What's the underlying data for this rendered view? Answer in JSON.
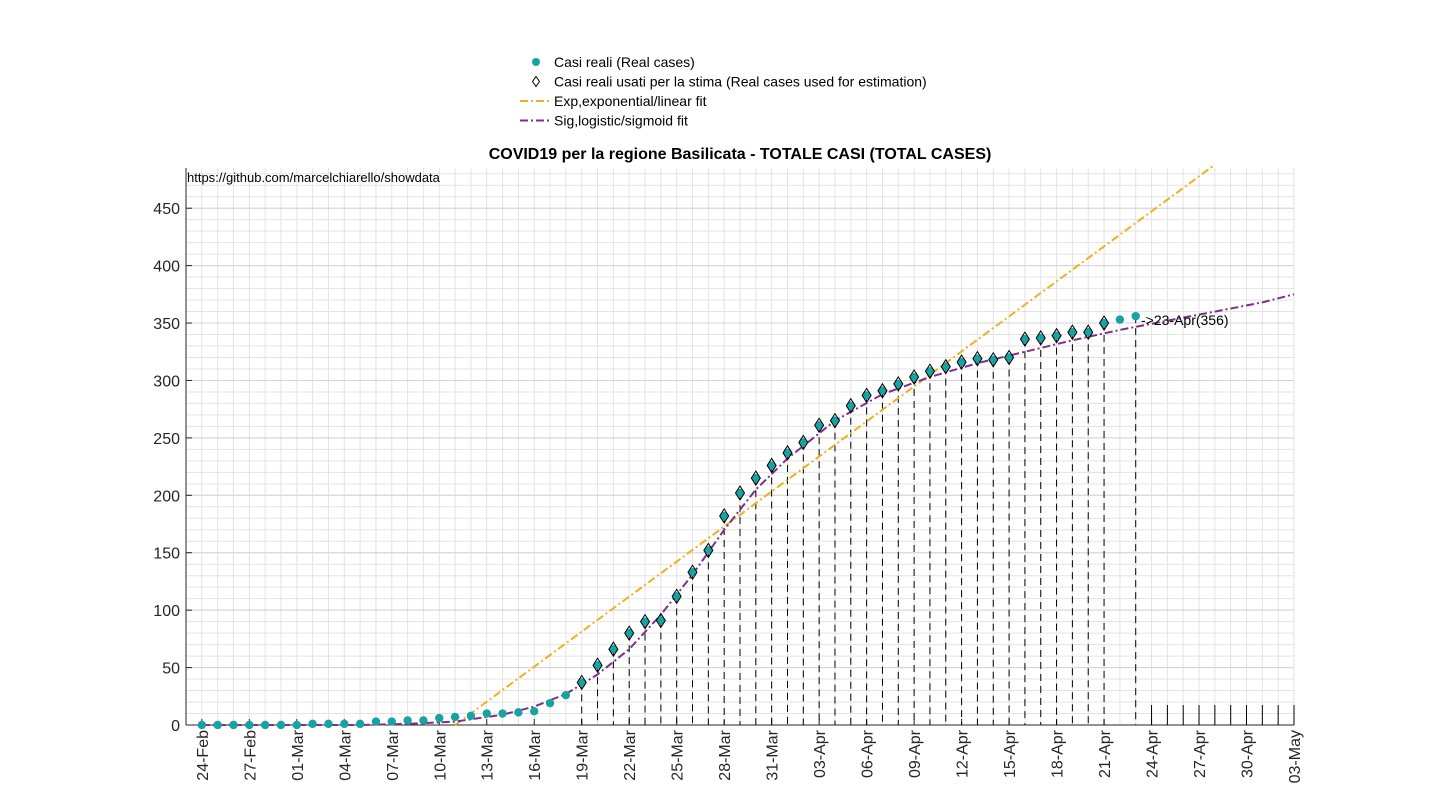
{
  "chart_data": {
    "type": "scatter",
    "title": "COVID19 per la regione Basilicata - TOTALE CASI (TOTAL CASES)",
    "source_text": "https://github.com/marcelchiarello/showdata",
    "xlabel": "",
    "ylabel": "",
    "ylim": [
      0,
      485
    ],
    "y_ticks": [
      0,
      50,
      100,
      150,
      200,
      250,
      300,
      350,
      400,
      450
    ],
    "x_ticks": [
      "24-Feb",
      "27-Feb",
      "01-Mar",
      "04-Mar",
      "07-Mar",
      "10-Mar",
      "13-Mar",
      "16-Mar",
      "19-Mar",
      "22-Mar",
      "25-Mar",
      "28-Mar",
      "31-Mar",
      "03-Apr",
      "06-Apr",
      "09-Apr",
      "12-Apr",
      "15-Apr",
      "18-Apr",
      "21-Apr",
      "24-Apr",
      "27-Apr",
      "30-Apr",
      "03-May"
    ],
    "x_start": "24-Feb",
    "x_end": "03-May",
    "grid": true,
    "legend_position": "top",
    "legend": [
      {
        "label": "Casi reali (Real cases)",
        "marker": "filled-circle",
        "color": "#17a3a3"
      },
      {
        "label": "Casi reali usati per la stima (Real cases used for estimation)",
        "marker": "open-diamond",
        "color": "#000000"
      },
      {
        "label": "Exp,exponential/linear fit",
        "marker": "dash-dot-line",
        "color": "#edb120"
      },
      {
        "label": "Sig,logistic/sigmoid fit",
        "marker": "dash-dot-line",
        "color": "#7e2f8e"
      }
    ],
    "annotation": "->23-Apr(356)",
    "series": [
      {
        "name": "Casi reali (Real cases)",
        "dates": [
          "24-Feb",
          "25-Feb",
          "26-Feb",
          "27-Feb",
          "28-Feb",
          "29-Feb",
          "01-Mar",
          "02-Mar",
          "03-Mar",
          "04-Mar",
          "05-Mar",
          "06-Mar",
          "07-Mar",
          "08-Mar",
          "09-Mar",
          "10-Mar",
          "11-Mar",
          "12-Mar",
          "13-Mar",
          "14-Mar",
          "15-Mar",
          "16-Mar",
          "17-Mar",
          "18-Mar",
          "19-Mar",
          "20-Mar",
          "21-Mar",
          "22-Mar",
          "23-Mar",
          "24-Mar",
          "25-Mar",
          "26-Mar",
          "27-Mar",
          "28-Mar",
          "29-Mar",
          "30-Mar",
          "31-Mar",
          "01-Apr",
          "02-Apr",
          "03-Apr",
          "04-Apr",
          "05-Apr",
          "06-Apr",
          "07-Apr",
          "08-Apr",
          "09-Apr",
          "10-Apr",
          "11-Apr",
          "12-Apr",
          "13-Apr",
          "14-Apr",
          "15-Apr",
          "16-Apr",
          "17-Apr",
          "18-Apr",
          "19-Apr",
          "20-Apr",
          "21-Apr",
          "22-Apr",
          "23-Apr"
        ],
        "values": [
          0,
          0,
          0,
          0,
          0,
          0,
          0,
          1,
          1,
          1,
          1,
          3,
          3,
          4,
          4,
          6,
          7,
          8,
          10,
          10,
          11,
          12,
          19,
          26,
          37,
          52,
          66,
          80,
          90,
          91,
          112,
          133,
          152,
          182,
          202,
          215,
          226,
          237,
          246,
          261,
          265,
          278,
          287,
          291,
          297,
          303,
          308,
          312,
          316,
          319,
          318,
          320,
          336,
          337,
          339,
          342,
          342,
          350,
          353,
          356
        ],
        "color": "#17a3a3"
      },
      {
        "name": "Casi reali usati per la stima (Real cases used for estimation)",
        "dates": [
          "19-Mar",
          "20-Mar",
          "21-Mar",
          "22-Mar",
          "23-Mar",
          "24-Mar",
          "25-Mar",
          "26-Mar",
          "27-Mar",
          "28-Mar",
          "29-Mar",
          "30-Mar",
          "31-Mar",
          "01-Apr",
          "02-Apr",
          "03-Apr",
          "04-Apr",
          "05-Apr",
          "06-Apr",
          "07-Apr",
          "08-Apr",
          "09-Apr",
          "10-Apr",
          "11-Apr",
          "12-Apr",
          "13-Apr",
          "14-Apr",
          "15-Apr",
          "16-Apr",
          "17-Apr",
          "18-Apr",
          "19-Apr",
          "20-Apr",
          "21-Apr"
        ],
        "values": [
          37,
          52,
          66,
          80,
          90,
          91,
          112,
          133,
          152,
          182,
          202,
          215,
          226,
          237,
          246,
          261,
          265,
          278,
          287,
          291,
          297,
          303,
          308,
          312,
          316,
          319,
          318,
          320,
          336,
          337,
          339,
          342,
          342,
          350
        ],
        "color": "#000000"
      },
      {
        "name": "Exp,exponential/linear fit",
        "dates": [
          "11-Mar",
          "28-Apr"
        ],
        "values": [
          0,
          488
        ],
        "color": "#edb120"
      },
      {
        "name": "Sig,logistic/sigmoid fit",
        "dates": [
          "24-Feb",
          "01-Mar",
          "05-Mar",
          "08-Mar",
          "11-Mar",
          "14-Mar",
          "16-Mar",
          "18-Mar",
          "20-Mar",
          "22-Mar",
          "24-Mar",
          "26-Mar",
          "28-Mar",
          "30-Mar",
          "01-Apr",
          "04-Apr",
          "07-Apr",
          "10-Apr",
          "13-Apr",
          "16-Apr",
          "19-Apr",
          "22-Apr",
          "25-Apr",
          "28-Apr",
          "01-May",
          "03-May"
        ],
        "values": [
          0,
          0,
          0,
          1,
          3,
          9,
          16,
          27,
          44,
          66,
          96,
          131,
          170,
          205,
          232,
          265,
          288,
          303,
          315,
          325,
          335,
          344,
          352,
          360,
          368,
          375
        ],
        "color": "#7e2f8e"
      }
    ]
  }
}
